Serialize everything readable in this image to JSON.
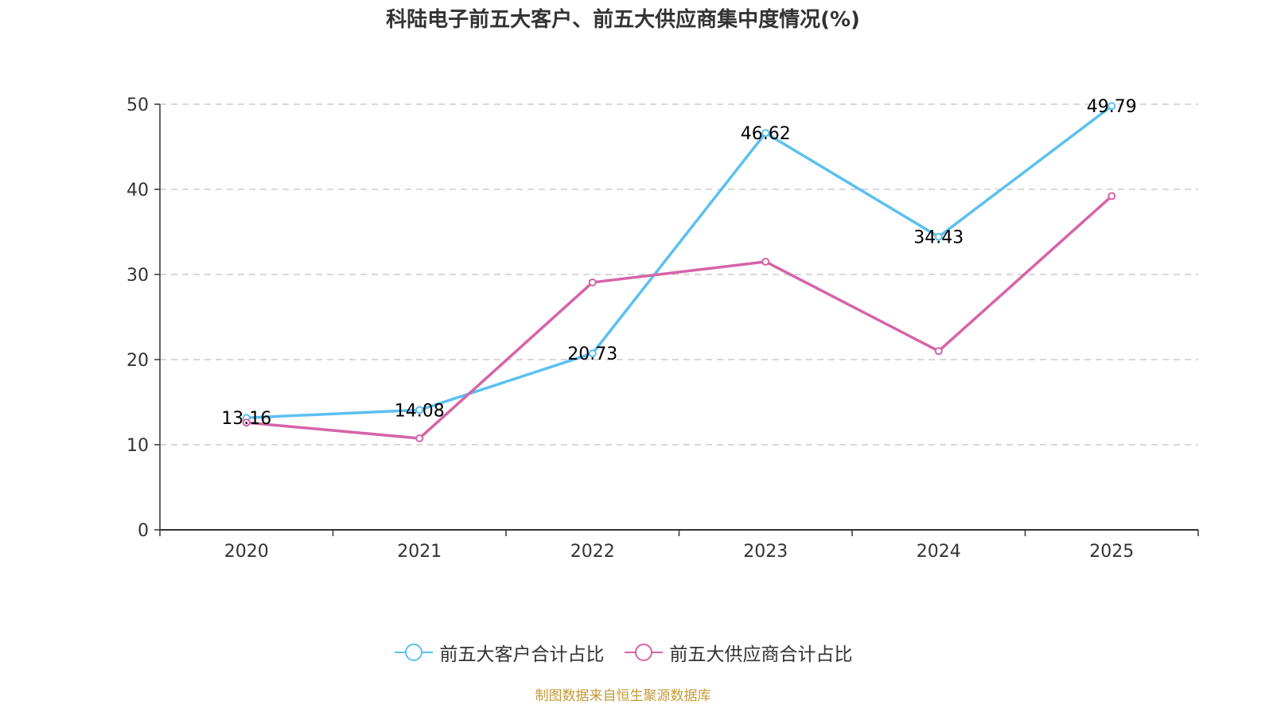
{
  "chart_data": {
    "type": "line",
    "title": "科陆电子前五大客户、前五大供应商集中度情况(%)",
    "categories": [
      "2020",
      "2021",
      "2022",
      "2023",
      "2024",
      "2025"
    ],
    "yticks": [
      "0",
      "10",
      "20",
      "30",
      "40",
      "50"
    ],
    "ylim": [
      0,
      50
    ],
    "grid": true,
    "legend_position": "bottom",
    "series": [
      {
        "name": "前五大客户合计占比",
        "color": "#5bc0f0",
        "values": [
          13.16,
          14.08,
          20.73,
          46.62,
          34.43,
          49.79
        ],
        "labels": [
          "13.16",
          "14.08",
          "20.73",
          "46.62",
          "34.43",
          "49.79"
        ]
      },
      {
        "name": "前五大供应商合计占比",
        "color": "#d564a8",
        "values": [
          12.6,
          10.75,
          29.07,
          31.5,
          21.0,
          39.2
        ]
      }
    ]
  },
  "source": "制图数据来自恒生聚源数据库"
}
